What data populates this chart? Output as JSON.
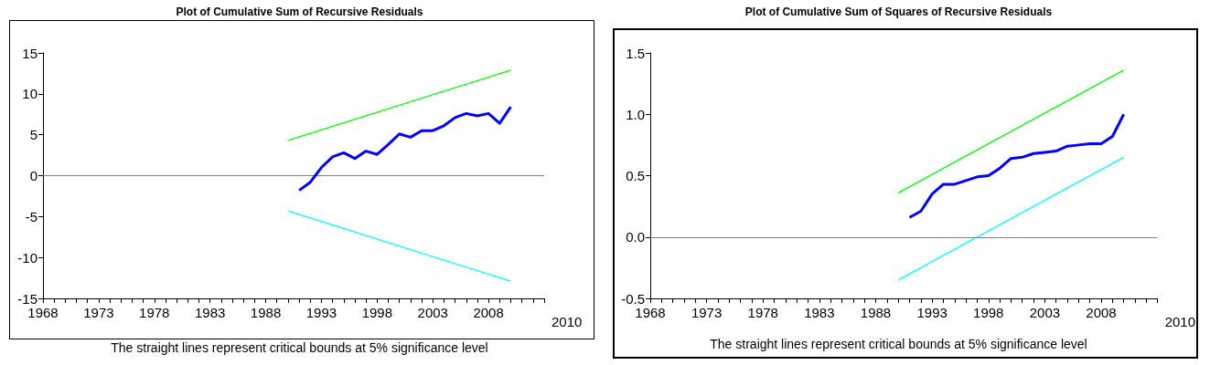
{
  "chart_data": [
    {
      "type": "line",
      "title": "Plot of Cumulative Sum of Recursive Residuals",
      "xlabel": "2010",
      "annotations": [
        "The straight lines represent critical bounds at 5% significance level"
      ],
      "xlim": [
        1968,
        2013
      ],
      "xticks": [
        1968,
        {
          "value": 1969,
          "label": null
        },
        {
          "value": 1970,
          "label": null
        },
        {
          "value": 1971,
          "label": null
        },
        {
          "value": 1972,
          "label": null
        },
        1973,
        {
          "value": 1974,
          "label": null
        },
        {
          "value": 1975,
          "label": null
        },
        {
          "value": 1976,
          "label": null
        },
        {
          "value": 1977,
          "label": null
        },
        1978,
        {
          "value": 1979,
          "label": null
        },
        {
          "value": 1980,
          "label": null
        },
        {
          "value": 1981,
          "label": null
        },
        {
          "value": 1982,
          "label": null
        },
        1983,
        {
          "value": 1984,
          "label": null
        },
        {
          "value": 1985,
          "label": null
        },
        {
          "value": 1986,
          "label": null
        },
        {
          "value": 1987,
          "label": null
        },
        1988,
        {
          "value": 1989,
          "label": null
        },
        {
          "value": 1990,
          "label": null
        },
        {
          "value": 1991,
          "label": null
        },
        {
          "value": 1992,
          "label": null
        },
        1993,
        {
          "value": 1994,
          "label": null
        },
        {
          "value": 1995,
          "label": null
        },
        {
          "value": 1996,
          "label": null
        },
        {
          "value": 1997,
          "label": null
        },
        1998,
        {
          "value": 1999,
          "label": null
        },
        {
          "value": 2000,
          "label": null
        },
        {
          "value": 2001,
          "label": null
        },
        {
          "value": 2002,
          "label": null
        },
        2003,
        {
          "value": 2004,
          "label": null
        },
        {
          "value": 2005,
          "label": null
        },
        {
          "value": 2006,
          "label": null
        },
        {
          "value": 2007,
          "label": null
        },
        2008,
        {
          "value": 2009,
          "label": null
        },
        {
          "value": 2010,
          "label": null
        },
        {
          "value": 2011,
          "label": null
        },
        {
          "value": 2012,
          "label": null
        },
        {
          "value": 2013,
          "label": null
        }
      ],
      "ylim": [
        -15,
        15
      ],
      "yticks": [
        -15,
        -10,
        -5,
        0,
        5,
        10,
        15
      ],
      "grid": false,
      "marker": "none",
      "ref_lines": [
        {
          "axis": "y",
          "value": 0,
          "color": "#808080"
        }
      ],
      "series": [
        {
          "color": "#0000ff",
          "x": [
            1991,
            1992,
            1993,
            1994,
            1995,
            1996,
            1997,
            1998,
            1999,
            2000,
            2001,
            2002,
            2003,
            2004,
            2005,
            2006,
            2007,
            2008,
            2009,
            2010
          ],
          "values": [
            -1.8,
            -0.8,
            1.0,
            2.3,
            2.8,
            2.1,
            3.0,
            2.6,
            3.8,
            5.1,
            4.7,
            5.5,
            5.5,
            6.1,
            7.1,
            7.6,
            7.3,
            7.6,
            6.4,
            8.4
          ]
        },
        {
          "color": "#00ff00",
          "x": [
            1990,
            2010
          ],
          "values": [
            4.3,
            12.9
          ]
        },
        {
          "color": "#00ffff",
          "x": [
            1990,
            2010
          ],
          "values": [
            -4.3,
            -12.9
          ]
        }
      ]
    },
    {
      "type": "line",
      "title": "Plot of Cumulative Sum of Squares of Recursive Residuals",
      "xlabel": "2010",
      "annotations": [
        "The straight lines represent critical bounds at 5% significance level"
      ],
      "xlim": [
        1968,
        2013
      ],
      "xticks": [
        1968,
        {
          "value": 1969,
          "label": null
        },
        {
          "value": 1970,
          "label": null
        },
        {
          "value": 1971,
          "label": null
        },
        {
          "value": 1972,
          "label": null
        },
        1973,
        {
          "value": 1974,
          "label": null
        },
        {
          "value": 1975,
          "label": null
        },
        {
          "value": 1976,
          "label": null
        },
        {
          "value": 1977,
          "label": null
        },
        1978,
        {
          "value": 1979,
          "label": null
        },
        {
          "value": 1980,
          "label": null
        },
        {
          "value": 1981,
          "label": null
        },
        {
          "value": 1982,
          "label": null
        },
        1983,
        {
          "value": 1984,
          "label": null
        },
        {
          "value": 1985,
          "label": null
        },
        {
          "value": 1986,
          "label": null
        },
        {
          "value": 1987,
          "label": null
        },
        1988,
        {
          "value": 1989,
          "label": null
        },
        {
          "value": 1990,
          "label": null
        },
        {
          "value": 1991,
          "label": null
        },
        {
          "value": 1992,
          "label": null
        },
        1993,
        {
          "value": 1994,
          "label": null
        },
        {
          "value": 1995,
          "label": null
        },
        {
          "value": 1996,
          "label": null
        },
        {
          "value": 1997,
          "label": null
        },
        1998,
        {
          "value": 1999,
          "label": null
        },
        {
          "value": 2000,
          "label": null
        },
        {
          "value": 2001,
          "label": null
        },
        {
          "value": 2002,
          "label": null
        },
        2003,
        {
          "value": 2004,
          "label": null
        },
        {
          "value": 2005,
          "label": null
        },
        {
          "value": 2006,
          "label": null
        },
        {
          "value": 2007,
          "label": null
        },
        2008,
        {
          "value": 2009,
          "label": null
        },
        {
          "value": 2010,
          "label": null
        },
        {
          "value": 2011,
          "label": null
        },
        {
          "value": 2012,
          "label": null
        },
        {
          "value": 2013,
          "label": null
        }
      ],
      "ylim": [
        -0.5,
        1.5
      ],
      "yticks": [
        -0.5,
        {
          "value": 0,
          "label": "0.0"
        },
        0.5,
        {
          "value": 1,
          "label": "1.0"
        },
        1.5
      ],
      "grid": false,
      "marker": "none",
      "ref_lines": [
        {
          "axis": "y",
          "value": 0,
          "color": "#808080"
        }
      ],
      "series": [
        {
          "color": "#0000ff",
          "x": [
            1991,
            1992,
            1993,
            1994,
            1995,
            1996,
            1997,
            1998,
            1999,
            2000,
            2001,
            2002,
            2003,
            2004,
            2005,
            2006,
            2007,
            2008,
            2009,
            2010
          ],
          "values": [
            0.16,
            0.21,
            0.35,
            0.43,
            0.43,
            0.46,
            0.49,
            0.5,
            0.56,
            0.64,
            0.65,
            0.68,
            0.69,
            0.7,
            0.74,
            0.75,
            0.76,
            0.76,
            0.82,
            1.0
          ]
        },
        {
          "color": "#00ff00",
          "x": [
            1990,
            2010
          ],
          "values": [
            0.36,
            1.36
          ]
        },
        {
          "color": "#00ffff",
          "x": [
            1990,
            2010
          ],
          "values": [
            -0.35,
            0.65
          ]
        }
      ]
    }
  ]
}
